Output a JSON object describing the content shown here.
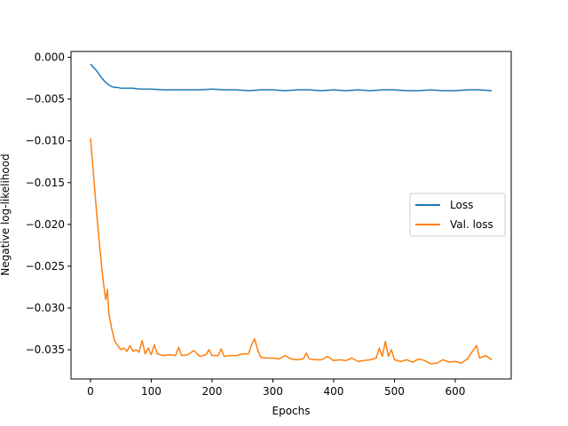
{
  "chart_data": {
    "type": "line",
    "title": "",
    "xlabel": "Epochs",
    "ylabel": "Negative log-likelihood",
    "xlim": [
      -32,
      692
    ],
    "ylim": [
      -0.0385,
      0.0007
    ],
    "xticks": [
      0,
      100,
      200,
      300,
      400,
      500,
      600
    ],
    "xtick_labels": [
      "0",
      "100",
      "200",
      "300",
      "400",
      "500",
      "600"
    ],
    "yticks": [
      0.0,
      -0.005,
      -0.01,
      -0.015,
      -0.02,
      -0.025,
      -0.03,
      -0.035
    ],
    "ytick_labels": [
      "0.000",
      "−0.005",
      "−0.010",
      "−0.015",
      "−0.020",
      "−0.025",
      "−0.030",
      "−0.035"
    ],
    "grid": false,
    "legend_position": "center-right",
    "series": [
      {
        "name": "Loss",
        "color": "#1f77b4",
        "x": [
          0,
          5,
          10,
          15,
          20,
          25,
          30,
          35,
          40,
          45,
          50,
          60,
          70,
          80,
          90,
          100,
          120,
          140,
          160,
          180,
          200,
          220,
          240,
          260,
          280,
          300,
          320,
          340,
          360,
          380,
          400,
          420,
          440,
          460,
          480,
          500,
          520,
          540,
          560,
          580,
          600,
          620,
          640,
          660
        ],
        "y": [
          -0.0008,
          -0.0012,
          -0.0016,
          -0.0021,
          -0.0026,
          -0.003,
          -0.0033,
          -0.0035,
          -0.0036,
          -0.0036,
          -0.0037,
          -0.0037,
          -0.0037,
          -0.0038,
          -0.0038,
          -0.0038,
          -0.0039,
          -0.0039,
          -0.0039,
          -0.0039,
          -0.0038,
          -0.0039,
          -0.0039,
          -0.004,
          -0.0039,
          -0.0039,
          -0.004,
          -0.0039,
          -0.0039,
          -0.004,
          -0.0039,
          -0.004,
          -0.0039,
          -0.004,
          -0.0039,
          -0.0039,
          -0.004,
          -0.004,
          -0.0039,
          -0.004,
          -0.004,
          -0.0039,
          -0.0039,
          -0.004
        ]
      },
      {
        "name": "Val. loss",
        "color": "#ff7f0e",
        "x": [
          0,
          5,
          10,
          15,
          20,
          25,
          28,
          30,
          35,
          40,
          45,
          50,
          55,
          60,
          65,
          70,
          75,
          80,
          85,
          90,
          95,
          100,
          105,
          110,
          120,
          130,
          140,
          145,
          150,
          160,
          170,
          180,
          190,
          195,
          200,
          210,
          215,
          220,
          230,
          240,
          250,
          260,
          265,
          270,
          275,
          280,
          290,
          300,
          310,
          320,
          330,
          340,
          350,
          355,
          360,
          370,
          380,
          390,
          400,
          410,
          420,
          430,
          440,
          450,
          460,
          470,
          475,
          480,
          485,
          490,
          495,
          500,
          510,
          520,
          530,
          540,
          550,
          560,
          570,
          580,
          590,
          600,
          610,
          620,
          630,
          635,
          640,
          650,
          660
        ],
        "y": [
          -0.0097,
          -0.014,
          -0.0185,
          -0.0225,
          -0.0262,
          -0.029,
          -0.0278,
          -0.0305,
          -0.0325,
          -0.034,
          -0.0345,
          -0.035,
          -0.0348,
          -0.0352,
          -0.0345,
          -0.0352,
          -0.035,
          -0.0353,
          -0.0339,
          -0.0355,
          -0.0348,
          -0.0356,
          -0.0344,
          -0.0355,
          -0.0357,
          -0.0356,
          -0.0357,
          -0.0347,
          -0.0357,
          -0.0356,
          -0.0351,
          -0.0358,
          -0.0356,
          -0.035,
          -0.0357,
          -0.0357,
          -0.0349,
          -0.0358,
          -0.0357,
          -0.0357,
          -0.0355,
          -0.0355,
          -0.0344,
          -0.0337,
          -0.035,
          -0.0359,
          -0.036,
          -0.036,
          -0.0361,
          -0.0357,
          -0.0361,
          -0.0362,
          -0.0361,
          -0.0354,
          -0.0361,
          -0.0362,
          -0.0362,
          -0.0358,
          -0.0363,
          -0.0362,
          -0.0363,
          -0.036,
          -0.0364,
          -0.0363,
          -0.0362,
          -0.036,
          -0.0348,
          -0.0358,
          -0.034,
          -0.0358,
          -0.035,
          -0.0362,
          -0.0364,
          -0.0362,
          -0.0365,
          -0.0361,
          -0.0363,
          -0.0367,
          -0.0366,
          -0.0362,
          -0.0365,
          -0.0364,
          -0.0366,
          -0.0361,
          -0.035,
          -0.0345,
          -0.036,
          -0.0357,
          -0.0362
        ]
      }
    ]
  }
}
